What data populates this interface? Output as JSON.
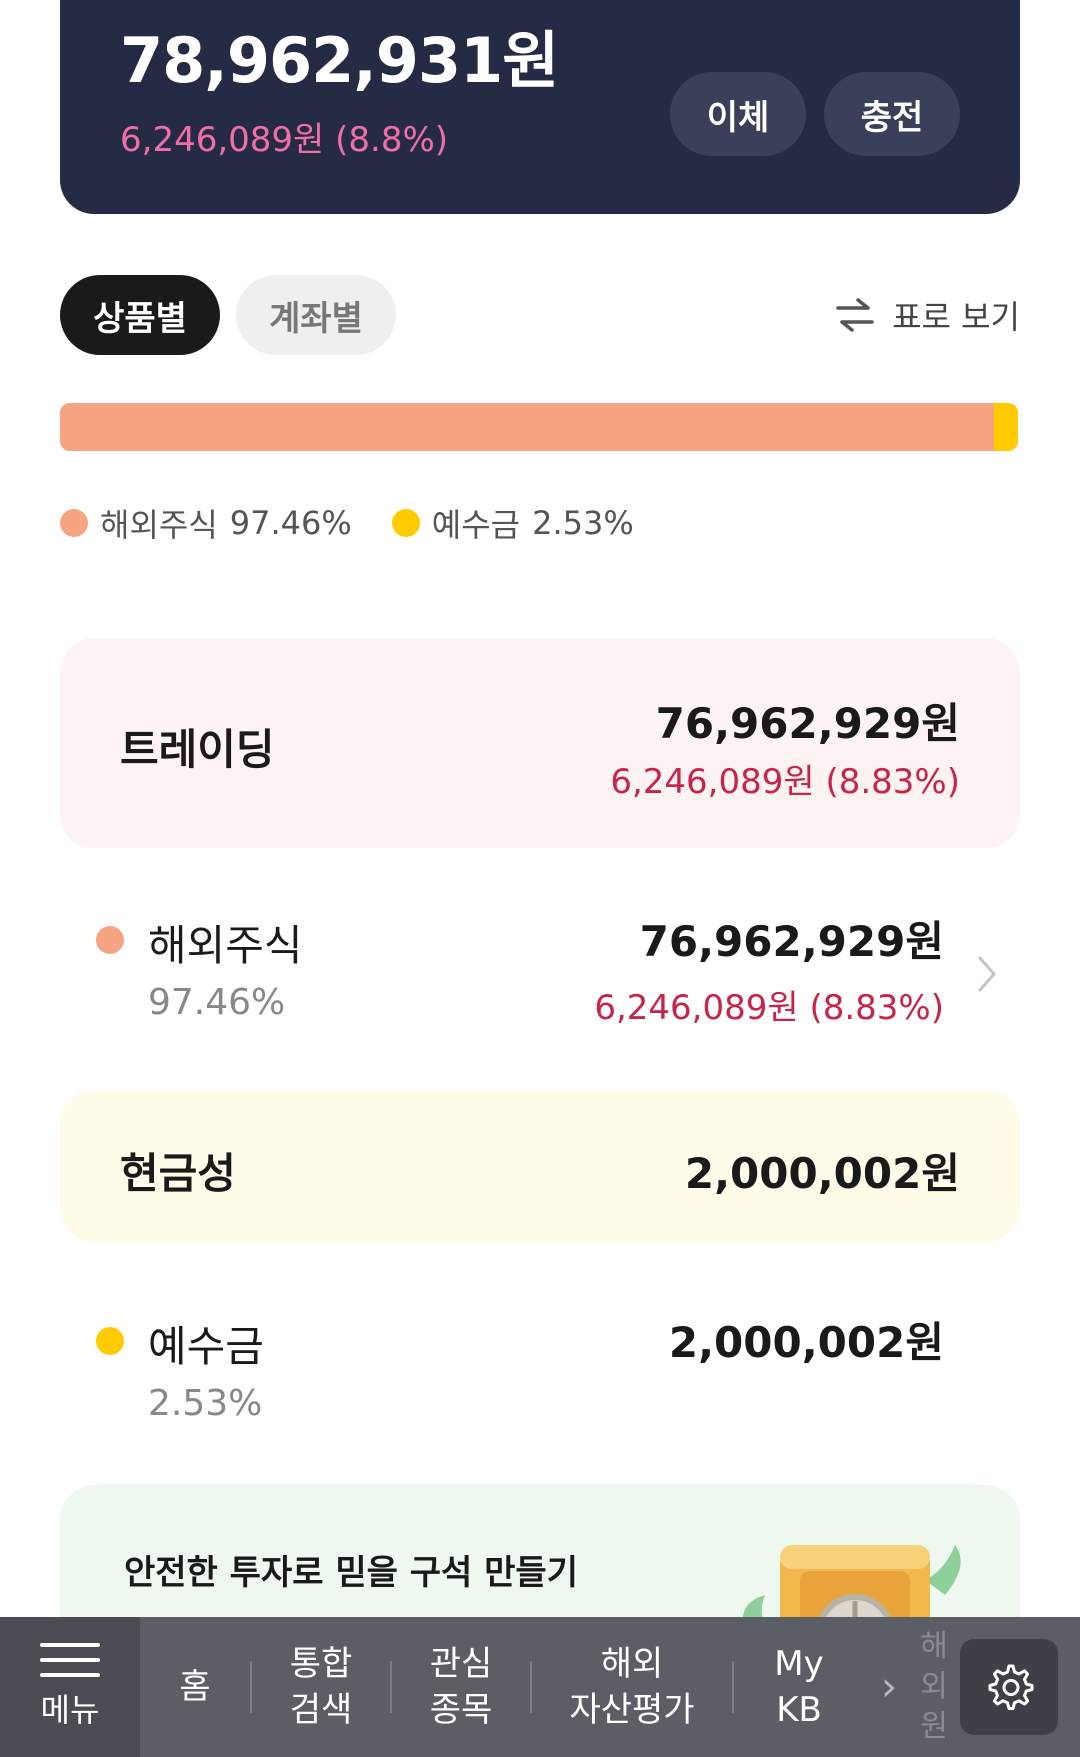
{
  "summary": {
    "total_amount": "78,962,931원",
    "total_profit": "6,246,089원 (8.8%)",
    "transfer_label": "이체",
    "charge_label": "충전"
  },
  "segments": {
    "by_product": "상품별",
    "by_account": "계좌별",
    "table_view_label": "표로 보기"
  },
  "allocation": {
    "items": [
      {
        "name": "해외주식",
        "percent_label": "97.46%",
        "percent": 97.46,
        "color": "#f7a482"
      },
      {
        "name": "예수금",
        "percent_label": "2.53%",
        "percent": 2.53,
        "color": "#ffcc00"
      }
    ]
  },
  "trading": {
    "title": "트레이딩",
    "amount": "76,962,929원",
    "profit": "6,246,089원 (8.83%)",
    "items": [
      {
        "name": "해외주식",
        "percent": "97.46%",
        "amount": "76,962,929원",
        "profit": "6,246,089원 (8.83%)",
        "color": "#f7a482"
      }
    ]
  },
  "cash": {
    "title": "현금성",
    "amount": "2,000,002원",
    "items": [
      {
        "name": "예수금",
        "percent": "2.53%",
        "amount": "2,000,002원",
        "color": "#ffcc00"
      }
    ]
  },
  "promo": {
    "text": "안전한 투자로 믿을 구석 만들기"
  },
  "bottom_nav": {
    "menu_label": "메뉴",
    "items": [
      "홈",
      "통합\n검색",
      "관심\n종목",
      "해외\n자산평가",
      "My\nKB"
    ],
    "next_label": "›",
    "faded_label": "해외\n원"
  },
  "colors": {
    "accent_dark": "#252b45",
    "profit_red": "#c8244a",
    "profit_pink": "#f06fa8",
    "stock_orange": "#f7a482",
    "cash_yellow": "#ffcc00"
  },
  "icons": [
    "swap-arrows-icon",
    "chevron-right-icon",
    "hamburger-menu-icon",
    "gear-icon",
    "safe-icon"
  ]
}
